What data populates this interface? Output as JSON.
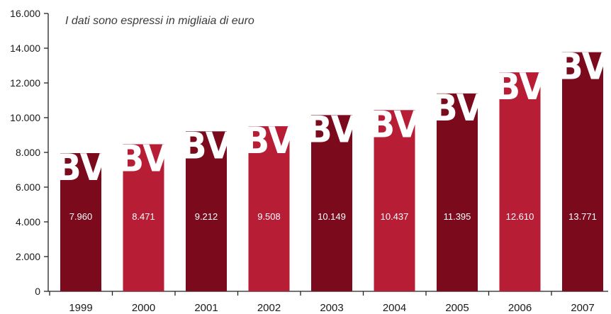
{
  "chart_data": {
    "type": "bar",
    "subtitle": "I dati sono espressi in migliaia di euro",
    "categories": [
      "1999",
      "2000",
      "2001",
      "2002",
      "2003",
      "2004",
      "2005",
      "2006",
      "2007"
    ],
    "values": [
      7960,
      8471,
      9212,
      9508,
      10149,
      10437,
      11395,
      12610,
      13771
    ],
    "value_labels": [
      "7.960",
      "8.471",
      "9.212",
      "9.508",
      "10.149",
      "10.437",
      "11.395",
      "12.610",
      "13.771"
    ],
    "bar_colors": [
      "#7a0a1c",
      "#b81d36",
      "#7a0a1c",
      "#b81d36",
      "#7a0a1c",
      "#b81d36",
      "#7a0a1c",
      "#b81d36",
      "#7a0a1c"
    ],
    "ylim": [
      0,
      16000
    ],
    "yticks": [
      0,
      2000,
      4000,
      6000,
      8000,
      10000,
      12000,
      14000,
      16000
    ],
    "ytick_labels": [
      "0",
      "2.000",
      "4.000",
      "6.000",
      "8.000",
      "10.000",
      "12.000",
      "14.000",
      "16.000"
    ],
    "bar_logo": "BV",
    "legend": "none",
    "grid": false
  }
}
